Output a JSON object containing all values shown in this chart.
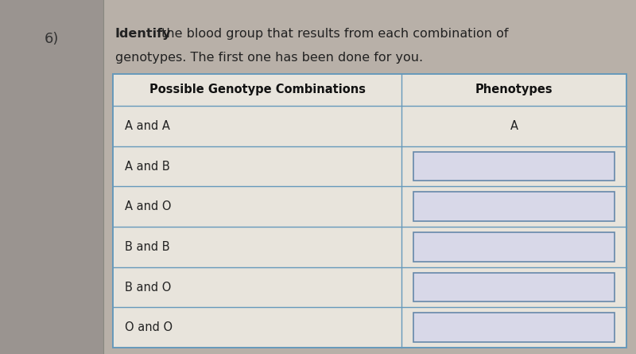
{
  "question_number": "6)",
  "question_bold": "Identify",
  "question_line1_rest": " the blood group that results from each combination of",
  "question_line2": "genotypes. The first one has been done for you.",
  "col1_header": "Possible Genotype Combinations",
  "col2_header": "Phenotypes",
  "rows": [
    {
      "genotype": "A and A",
      "phenotype": "A",
      "has_box": false
    },
    {
      "genotype": "A and B",
      "phenotype": "",
      "has_box": true
    },
    {
      "genotype": "A and O",
      "phenotype": "",
      "has_box": true
    },
    {
      "genotype": "B and B",
      "phenotype": "",
      "has_box": true
    },
    {
      "genotype": "B and O",
      "phenotype": "",
      "has_box": true
    },
    {
      "genotype": "O and O",
      "phenotype": "",
      "has_box": true
    }
  ],
  "fig_bg": "#b8b0a8",
  "left_panel_bg": "#9a9490",
  "table_bg": "#e8e4dc",
  "cell_bg": "#e8e4dc",
  "box_fill": "#d8d8e8",
  "box_border": "#6688aa",
  "table_border": "#6699bb",
  "text_color": "#222222",
  "header_text_color": "#111111",
  "number_color": "#333333"
}
